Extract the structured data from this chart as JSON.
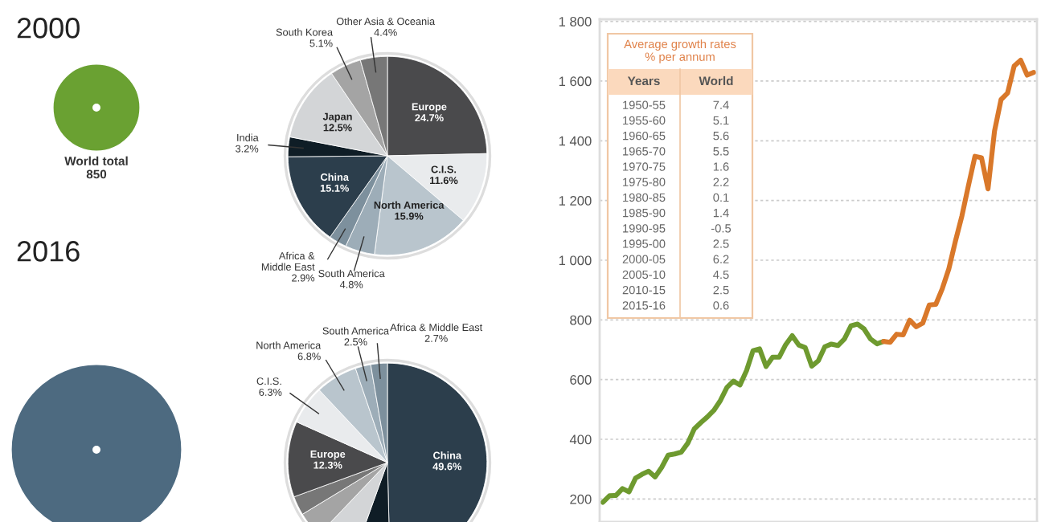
{
  "chart_data": [
    {
      "type": "pie",
      "title": "2000",
      "annotations": [
        "World total\n850"
      ],
      "categories": [
        "Europe",
        "C.I.S.",
        "North America",
        "South America",
        "Africa &\nMiddle East",
        "China",
        "India",
        "Japan",
        "South Korea",
        "Other Asia & Oceania"
      ],
      "values": [
        24.7,
        11.6,
        15.9,
        4.8,
        2.9,
        15.1,
        3.2,
        12.5,
        5.1,
        4.4
      ],
      "value_labels": [
        "24.7%",
        "11.6%",
        "15.9%",
        "4.8%",
        "2.9%",
        "15.1%",
        "3.2%",
        "12.5%",
        "5.1%",
        "4.4%"
      ],
      "colors": [
        "#4a4a4c",
        "#e9ebed",
        "#b9c5cd",
        "#9dadb8",
        "#7d909d",
        "#2c3e4c",
        "#0f1d26",
        "#d3d5d7",
        "#a4a4a4",
        "#777777"
      ]
    },
    {
      "type": "pie",
      "title": "2016",
      "categories": [
        "China",
        null,
        null,
        null,
        null,
        "Europe",
        "C.I.S.",
        "North America",
        "South America",
        "Africa & Middle East"
      ],
      "values": [
        49.6,
        5.9,
        6.6,
        4.2,
        3.1,
        12.3,
        6.3,
        6.8,
        2.5,
        2.7
      ],
      "value_labels": [
        "49.6%",
        null,
        null,
        null,
        null,
        "12.3%",
        "6.3%",
        "6.8%",
        "2.5%",
        "2.7%"
      ],
      "colors": [
        "#2c3e4c",
        "#0f1d26",
        "#d3d5d7",
        "#a4a4a4",
        "#777777",
        "#4a4a4c",
        "#e9ebed",
        "#b9c5cd",
        "#9dadb8",
        "#7d909d"
      ]
    },
    {
      "type": "line",
      "tick_labels": "y",
      "grid": "y",
      "categories": [
        null,
        null,
        null,
        null,
        null,
        null,
        null,
        null,
        null,
        null,
        null,
        null,
        null,
        null,
        null,
        null,
        null,
        null,
        null,
        null,
        null,
        null,
        null,
        null,
        null,
        null,
        null,
        null,
        null,
        null,
        null,
        null,
        null,
        null,
        null,
        null,
        null,
        null,
        null,
        null,
        null,
        null,
        null,
        null,
        null,
        null,
        null,
        null,
        null,
        null,
        null,
        null,
        null,
        null,
        null,
        null,
        null,
        null,
        null,
        null,
        null,
        null,
        null,
        null,
        null,
        null,
        null
      ],
      "annotations": [
        "Average growth rates\n% per annum",
        "Years",
        "World",
        "1950-55",
        "7.4",
        "1955-60",
        "5.1",
        "1960-65",
        "5.6",
        "1965-70",
        "5.5",
        "1970-75",
        "1.6",
        "1975-80",
        "2.2",
        "1980-85",
        "0.1",
        "1985-90",
        "1.4",
        "1990-95",
        "-0.5",
        "1995-00",
        "2.5",
        "2000-05",
        "6.2",
        "2005-10",
        "4.5",
        "2010-15",
        "2.5",
        "2015-16",
        "0.6"
      ],
      "ylim": [
        123,
        1807
      ],
      "yticks": [
        200,
        400,
        600,
        800,
        {
          "value": 1000,
          "label": "1 000"
        },
        {
          "value": 1200,
          "label": "1 200"
        },
        {
          "value": 1400,
          "label": "1 400"
        },
        {
          "value": 1600,
          "label": "1 600"
        },
        {
          "value": 1800,
          "label": "1 800"
        }
      ],
      "series": [
        {
          "color": "#6e9a2f",
          "values": [
            189,
            211,
            212,
            235,
            224,
            270,
            283,
            293,
            274,
            306,
            347,
            351,
            357,
            387,
            435,
            456,
            475,
            497,
            530,
            574,
            595,
            582,
            630,
            697,
            703,
            644,
            675,
            675,
            717,
            747,
            716,
            707,
            645,
            663,
            710,
            719,
            714,
            736,
            780,
            786,
            770,
            736,
            720,
            728,
            null,
            null,
            null,
            null,
            null,
            null,
            null,
            null,
            null,
            null,
            null,
            null,
            null,
            null,
            null,
            null,
            null,
            null,
            null,
            null,
            null,
            null,
            null
          ]
        },
        {
          "color": "#d9782a",
          "values": [
            null,
            null,
            null,
            null,
            null,
            null,
            null,
            null,
            null,
            null,
            null,
            null,
            null,
            null,
            null,
            null,
            null,
            null,
            null,
            null,
            null,
            null,
            null,
            null,
            null,
            null,
            null,
            null,
            null,
            null,
            null,
            null,
            null,
            null,
            null,
            null,
            null,
            null,
            null,
            null,
            null,
            null,
            null,
            728,
            725,
            752,
            750,
            799,
            777,
            789,
            850,
            852,
            905,
            971,
            1063,
            1148,
            1250,
            1348,
            1343,
            1239,
            1433,
            1538,
            1560,
            1650,
            1670,
            1620,
            1629
          ]
        }
      ]
    }
  ]
}
